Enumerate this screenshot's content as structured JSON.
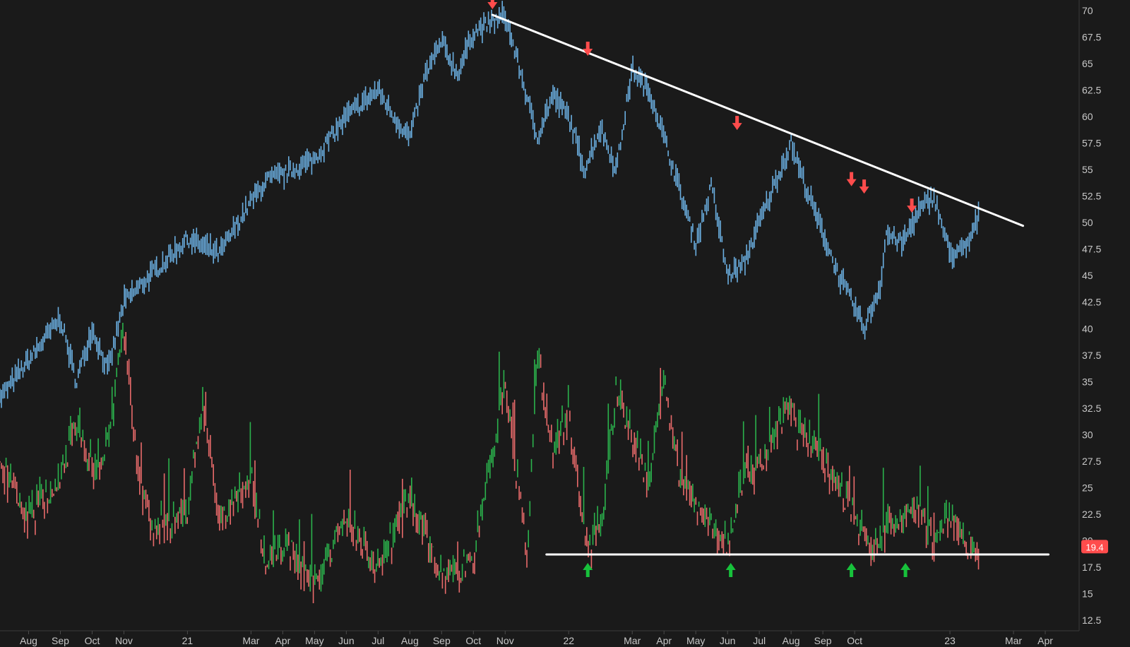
{
  "chart_data": {
    "type": "line",
    "title": "",
    "grid": false,
    "background": "#1a1a1a",
    "y_axis": {
      "position": "right",
      "ylim": [
        11.5,
        71
      ],
      "ticks": [
        "70",
        "67.5",
        "65",
        "62.5",
        "60",
        "57.5",
        "55",
        "52.5",
        "50",
        "47.5",
        "45",
        "42.5",
        "40",
        "37.5",
        "35",
        "32.5",
        "30",
        "27.5",
        "25",
        "22.5",
        "20",
        "17.5",
        "15",
        "12.5"
      ]
    },
    "x_axis": {
      "ticks": [
        "Aug",
        "Sep",
        "Oct",
        "Nov",
        "21",
        "Mar",
        "Apr",
        "May",
        "Jun",
        "Jul",
        "Aug",
        "Sep",
        "Oct",
        "Nov",
        "22",
        "Mar",
        "Apr",
        "May",
        "Jun",
        "Jul",
        "Aug",
        "Sep",
        "Oct",
        "23",
        "Mar",
        "Apr"
      ],
      "tick_month_index": [
        1,
        2,
        3,
        4,
        6,
        8,
        9,
        10,
        11,
        12,
        13,
        14,
        15,
        16,
        18,
        20,
        21,
        22,
        23,
        24,
        25,
        26,
        27,
        30,
        32,
        33
      ]
    },
    "colors": {
      "price": "#6aaee0",
      "volatility_up": "#2bb24c",
      "volatility_down": "#e86a6a",
      "trendline": "#ffffff",
      "resistance_arrow": "#ff4c4c",
      "support_arrow": "#17c13b",
      "last_value_badge": "#ff4c4c"
    },
    "series": [
      {
        "key": "price",
        "x": [
          0,
          1,
          2,
          2.5,
          3,
          3.5,
          4,
          5,
          6,
          7,
          8,
          8.5,
          9,
          10,
          11,
          12,
          12.5,
          13,
          13.5,
          14,
          14.5,
          15,
          16,
          16.5,
          17,
          17.5,
          18,
          18.5,
          19,
          19.5,
          20,
          20.6,
          21,
          21.5,
          22,
          22.5,
          23,
          23.5,
          24,
          25,
          25.5,
          26,
          26.5,
          27,
          27.3,
          27.8,
          28,
          28.5,
          29,
          29.5,
          30,
          30.5,
          30.9
        ],
        "y": [
          33,
          37,
          41,
          35,
          40,
          36,
          42.5,
          45.5,
          48.5,
          47,
          52,
          54,
          54.5,
          56,
          60,
          62.5,
          60,
          58,
          64,
          67,
          64,
          68,
          69.5,
          64,
          58,
          62,
          60,
          55,
          59,
          55,
          64.5,
          62,
          58,
          53,
          48,
          53.5,
          45,
          46,
          50,
          57.5,
          53,
          49,
          45,
          42,
          40,
          44,
          49,
          48,
          51,
          52.5,
          47,
          47.5,
          50.5
        ]
      },
      {
        "key": "volatility",
        "x": [
          0,
          1,
          2,
          2.5,
          3,
          3.5,
          4,
          4.5,
          5,
          6,
          6.5,
          7,
          8,
          8.5,
          9,
          10,
          11,
          12,
          13,
          14,
          15,
          16,
          16.7,
          17,
          17.5,
          18,
          18.6,
          19,
          19.5,
          20,
          20.5,
          21,
          21.5,
          22,
          22.5,
          23,
          23.5,
          24,
          25,
          25.2,
          26,
          26.5,
          27,
          27.5,
          28,
          29,
          29.5,
          30,
          30.5,
          30.9
        ],
        "y": [
          28,
          22,
          26,
          31,
          27,
          29,
          40,
          25,
          21,
          23,
          33,
          22,
          26,
          17.5,
          20,
          16,
          22,
          17,
          24,
          16.5,
          18,
          35,
          18,
          38,
          28,
          32,
          19,
          21,
          34,
          30,
          25,
          35,
          26,
          23,
          21,
          19.5,
          26,
          27,
          33,
          30,
          28,
          25,
          22,
          19,
          21,
          23,
          20,
          22,
          20,
          19.4
        ]
      }
    ],
    "trendlines": [
      {
        "x1": 15.6,
        "y1": 69.6,
        "x2": 32.3,
        "y2": 49.7
      },
      {
        "x1": 17.3,
        "y1": 18.7,
        "x2": 33.1,
        "y2": 18.7
      }
    ],
    "resistance_arrows": [
      {
        "x": 15.6,
        "y": 69.6
      },
      {
        "x": 18.6,
        "y": 65.2
      },
      {
        "x": 23.3,
        "y": 58.2
      },
      {
        "x": 26.9,
        "y": 52.9
      },
      {
        "x": 27.3,
        "y": 52.2
      },
      {
        "x": 28.8,
        "y": 50.4
      }
    ],
    "support_arrows": [
      {
        "x": 18.6,
        "y": 18.7
      },
      {
        "x": 23.1,
        "y": 18.7
      },
      {
        "x": 26.9,
        "y": 18.7
      },
      {
        "x": 28.6,
        "y": 18.7
      }
    ],
    "last_value": {
      "label": "19.4",
      "value": 19.4
    }
  }
}
